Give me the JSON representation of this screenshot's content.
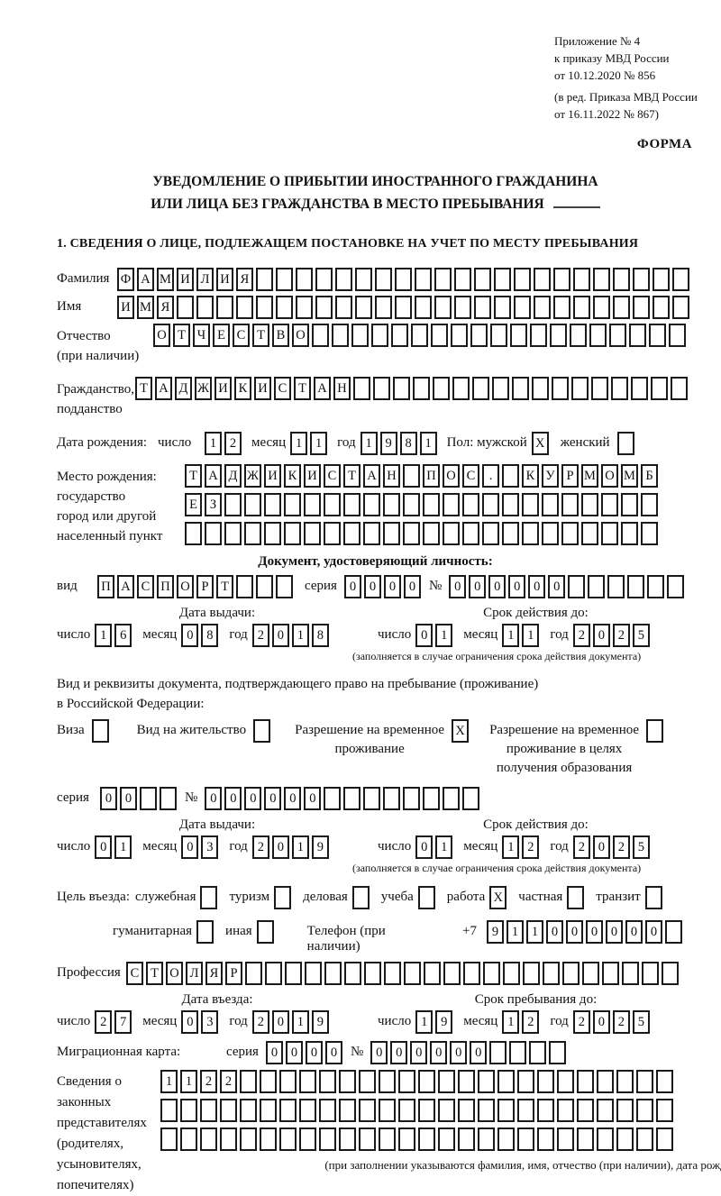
{
  "header": {
    "appendix_line1": "Приложение № 4",
    "appendix_line2": "к приказу МВД России",
    "appendix_line3": "от 10.12.2020 № 856",
    "edition_line1": "(в ред. Приказа МВД России",
    "edition_line2": "от 16.11.2022 № 867)",
    "form_label": "ФОРМА"
  },
  "title": {
    "line1": "УВЕДОМЛЕНИЕ О ПРИБЫТИИ ИНОСТРАННОГО ГРАЖДАНИНА",
    "line2": "ИЛИ ЛИЦА БЕЗ ГРАЖДАНСТВА В МЕСТО ПРЕБЫВАНИЯ"
  },
  "section1": {
    "heading": "1. СВЕДЕНИЯ О ЛИЦЕ, ПОДЛЕЖАЩЕМ ПОСТАНОВКЕ НА УЧЕТ ПО МЕСТУ ПРЕБЫВАНИЯ"
  },
  "labels": {
    "surname": "Фамилия",
    "name": "Имя",
    "patronymic": "Отчество",
    "patronymic_note": "(при наличии)",
    "citizenship1": "Гражданство,",
    "citizenship2": "подданство",
    "birth_date": "Дата рождения:",
    "day": "число",
    "month": "месяц",
    "year": "год",
    "sex_male": "Пол: мужской",
    "sex_female": "женский",
    "birthplace1": "Место рождения:",
    "birthplace2": "государство",
    "birthplace3": "город или другой",
    "birthplace4": "населенный пункт",
    "identity_doc_header": "Документ, удостоверяющий личность:",
    "doc_type": "вид",
    "series": "серия",
    "number": "№",
    "issue_date": "Дата выдачи:",
    "valid_until": "Срок действия до:",
    "valid_note": "(заполняется в случае ограничения срока действия документа)",
    "permit_intro1": "Вид и реквизиты документа, подтверждающего право на пребывание (проживание)",
    "permit_intro2": "в Российской Федерации:",
    "visa": "Виза",
    "residence_permit": "Вид на жительство",
    "temp_residence1": "Разрешение на временное",
    "temp_residence2": "проживание",
    "temp_edu1": "Разрешение на временное",
    "temp_edu2": "проживание в целях",
    "temp_edu3": "получения образования",
    "purpose": "Цель въезда:",
    "purpose_official": "служебная",
    "purpose_tourism": "туризм",
    "purpose_business": "деловая",
    "purpose_study": "учеба",
    "purpose_work": "работа",
    "purpose_private": "частная",
    "purpose_transit": "транзит",
    "purpose_humanitarian": "гуманитарная",
    "purpose_other": "иная",
    "phone": "Телефон (при наличии)",
    "phone_prefix": "+7",
    "profession": "Профессия",
    "entry_date": "Дата въезда:",
    "stay_until": "Срок пребывания до:",
    "migration_card": "Миграционная карта:",
    "representatives1": "Сведения о",
    "representatives2": "законных",
    "representatives3": "представителях",
    "representatives4": "(родителях,",
    "representatives5": "усыновителях,",
    "representatives6": "попечителях)",
    "representatives_note": "(при заполнении указываются фамилия, имя, отчество (при наличии), дата рождения)"
  },
  "boxes": {
    "surname": {
      "value": "ФАМИЛИЯ",
      "count": 29
    },
    "name": {
      "value": "ИМЯ",
      "count": 29
    },
    "patronymic": {
      "value": "ОТЧЕСТВО",
      "count": 27
    },
    "citizenship": {
      "value": "ТАДЖИКИСТАН",
      "count": 28
    },
    "birth_day": {
      "value": "12",
      "count": 2
    },
    "birth_month": {
      "value": "11",
      "count": 2
    },
    "birth_year": {
      "value": "1981",
      "count": 4
    },
    "sex_male": {
      "value": "X",
      "count": 1
    },
    "sex_female": {
      "value": "",
      "count": 1
    },
    "birthplace_row1": {
      "value": "ТАДЖИКИСТАН ПОС. КУРМОМБ",
      "count": 24
    },
    "birthplace_row2": {
      "value": "ЕЗ",
      "count": 24
    },
    "birthplace_row3": {
      "value": "",
      "count": 24
    },
    "doc_type": {
      "value": "ПАСПОРТ",
      "count": 10
    },
    "doc_series": {
      "value": "0000",
      "count": 4
    },
    "doc_number": {
      "value": "000000",
      "count": 12
    },
    "doc_issue_day": {
      "value": "16",
      "count": 2
    },
    "doc_issue_month": {
      "value": "08",
      "count": 2
    },
    "doc_issue_year": {
      "value": "2018",
      "count": 4
    },
    "doc_valid_day": {
      "value": "01",
      "count": 2
    },
    "doc_valid_month": {
      "value": "11",
      "count": 2
    },
    "doc_valid_year": {
      "value": "2025",
      "count": 4
    },
    "visa": {
      "value": "",
      "count": 1
    },
    "residence_permit": {
      "value": "",
      "count": 1
    },
    "temp_residence": {
      "value": "X",
      "count": 1
    },
    "temp_edu": {
      "value": "",
      "count": 1
    },
    "permit_series": {
      "value": "00",
      "count": 4
    },
    "permit_number": {
      "value": "000000",
      "count": 14
    },
    "permit_issue_day": {
      "value": "01",
      "count": 2
    },
    "permit_issue_month": {
      "value": "03",
      "count": 2
    },
    "permit_issue_year": {
      "value": "2019",
      "count": 4
    },
    "permit_valid_day": {
      "value": "01",
      "count": 2
    },
    "permit_valid_month": {
      "value": "12",
      "count": 2
    },
    "permit_valid_year": {
      "value": "2025",
      "count": 4
    },
    "purpose_official": {
      "value": "",
      "count": 1
    },
    "purpose_tourism": {
      "value": "",
      "count": 1
    },
    "purpose_business": {
      "value": "",
      "count": 1
    },
    "purpose_study": {
      "value": "",
      "count": 1
    },
    "purpose_work": {
      "value": "X",
      "count": 1
    },
    "purpose_private": {
      "value": "",
      "count": 1
    },
    "purpose_transit": {
      "value": "",
      "count": 1
    },
    "purpose_humanitarian": {
      "value": "",
      "count": 1
    },
    "purpose_other": {
      "value": "",
      "count": 1
    },
    "phone": {
      "value": "911000000",
      "count": 10
    },
    "profession": {
      "value": "СТОЛЯР",
      "count": 28
    },
    "entry_day": {
      "value": "27",
      "count": 2
    },
    "entry_month": {
      "value": "03",
      "count": 2
    },
    "entry_year": {
      "value": "2019",
      "count": 4
    },
    "stay_day": {
      "value": "19",
      "count": 2
    },
    "stay_month": {
      "value": "12",
      "count": 2
    },
    "stay_year": {
      "value": "2025",
      "count": 4
    },
    "migration_series": {
      "value": "0000",
      "count": 4
    },
    "migration_number": {
      "value": "000000",
      "count": 10
    },
    "reps_row1": {
      "value": "1122",
      "count": 26
    },
    "reps_row2": {
      "value": "",
      "count": 26
    },
    "reps_row3": {
      "value": "",
      "count": 26
    }
  }
}
